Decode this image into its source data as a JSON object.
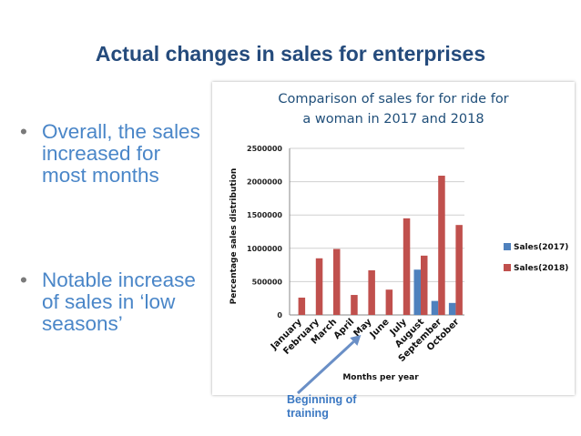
{
  "slide": {
    "title": "Actual changes in sales for enterprises",
    "bullets": [
      {
        "marker": "•",
        "text": "Overall, the sales increased for most months"
      },
      {
        "marker": "•",
        "text": "Notable increase of sales in ‘low seasons’"
      }
    ],
    "annotation": {
      "line1": "Beginning of",
      "line2": "training"
    }
  },
  "colors": {
    "title": "#254b7c",
    "bullet_text": "#4a86c8",
    "sales2017": "#4f81bd",
    "sales2018": "#c0504d",
    "arrow": "#6a8fc6"
  },
  "chart_data": {
    "type": "bar",
    "title_line1": "Comparison of sales for for ride for",
    "title_line2": "a woman in 2017 and 2018",
    "xlabel": "Months per year",
    "ylabel": "Percentage sales distribution",
    "ylim": [
      0,
      2500000
    ],
    "yticks": [
      0,
      500000,
      1000000,
      1500000,
      2000000,
      2500000
    ],
    "ytick_labels": [
      "0",
      "500000",
      "1000000",
      "1500000",
      "2000000",
      "2500000"
    ],
    "gridlines": true,
    "legend_position": "right",
    "categories": [
      "January",
      "February",
      "March",
      "April",
      "May",
      "June",
      "July",
      "August",
      "September",
      "October"
    ],
    "series": [
      {
        "name": "Sales(2017)",
        "color": "#4f81bd",
        "values": [
          0,
          0,
          0,
          0,
          0,
          0,
          0,
          680000,
          210000,
          180000
        ]
      },
      {
        "name": "Sales(2018)",
        "color": "#c0504d",
        "values": [
          260000,
          850000,
          990000,
          300000,
          670000,
          380000,
          1450000,
          890000,
          2090000,
          1350000
        ]
      }
    ],
    "annotation_target": "May"
  }
}
